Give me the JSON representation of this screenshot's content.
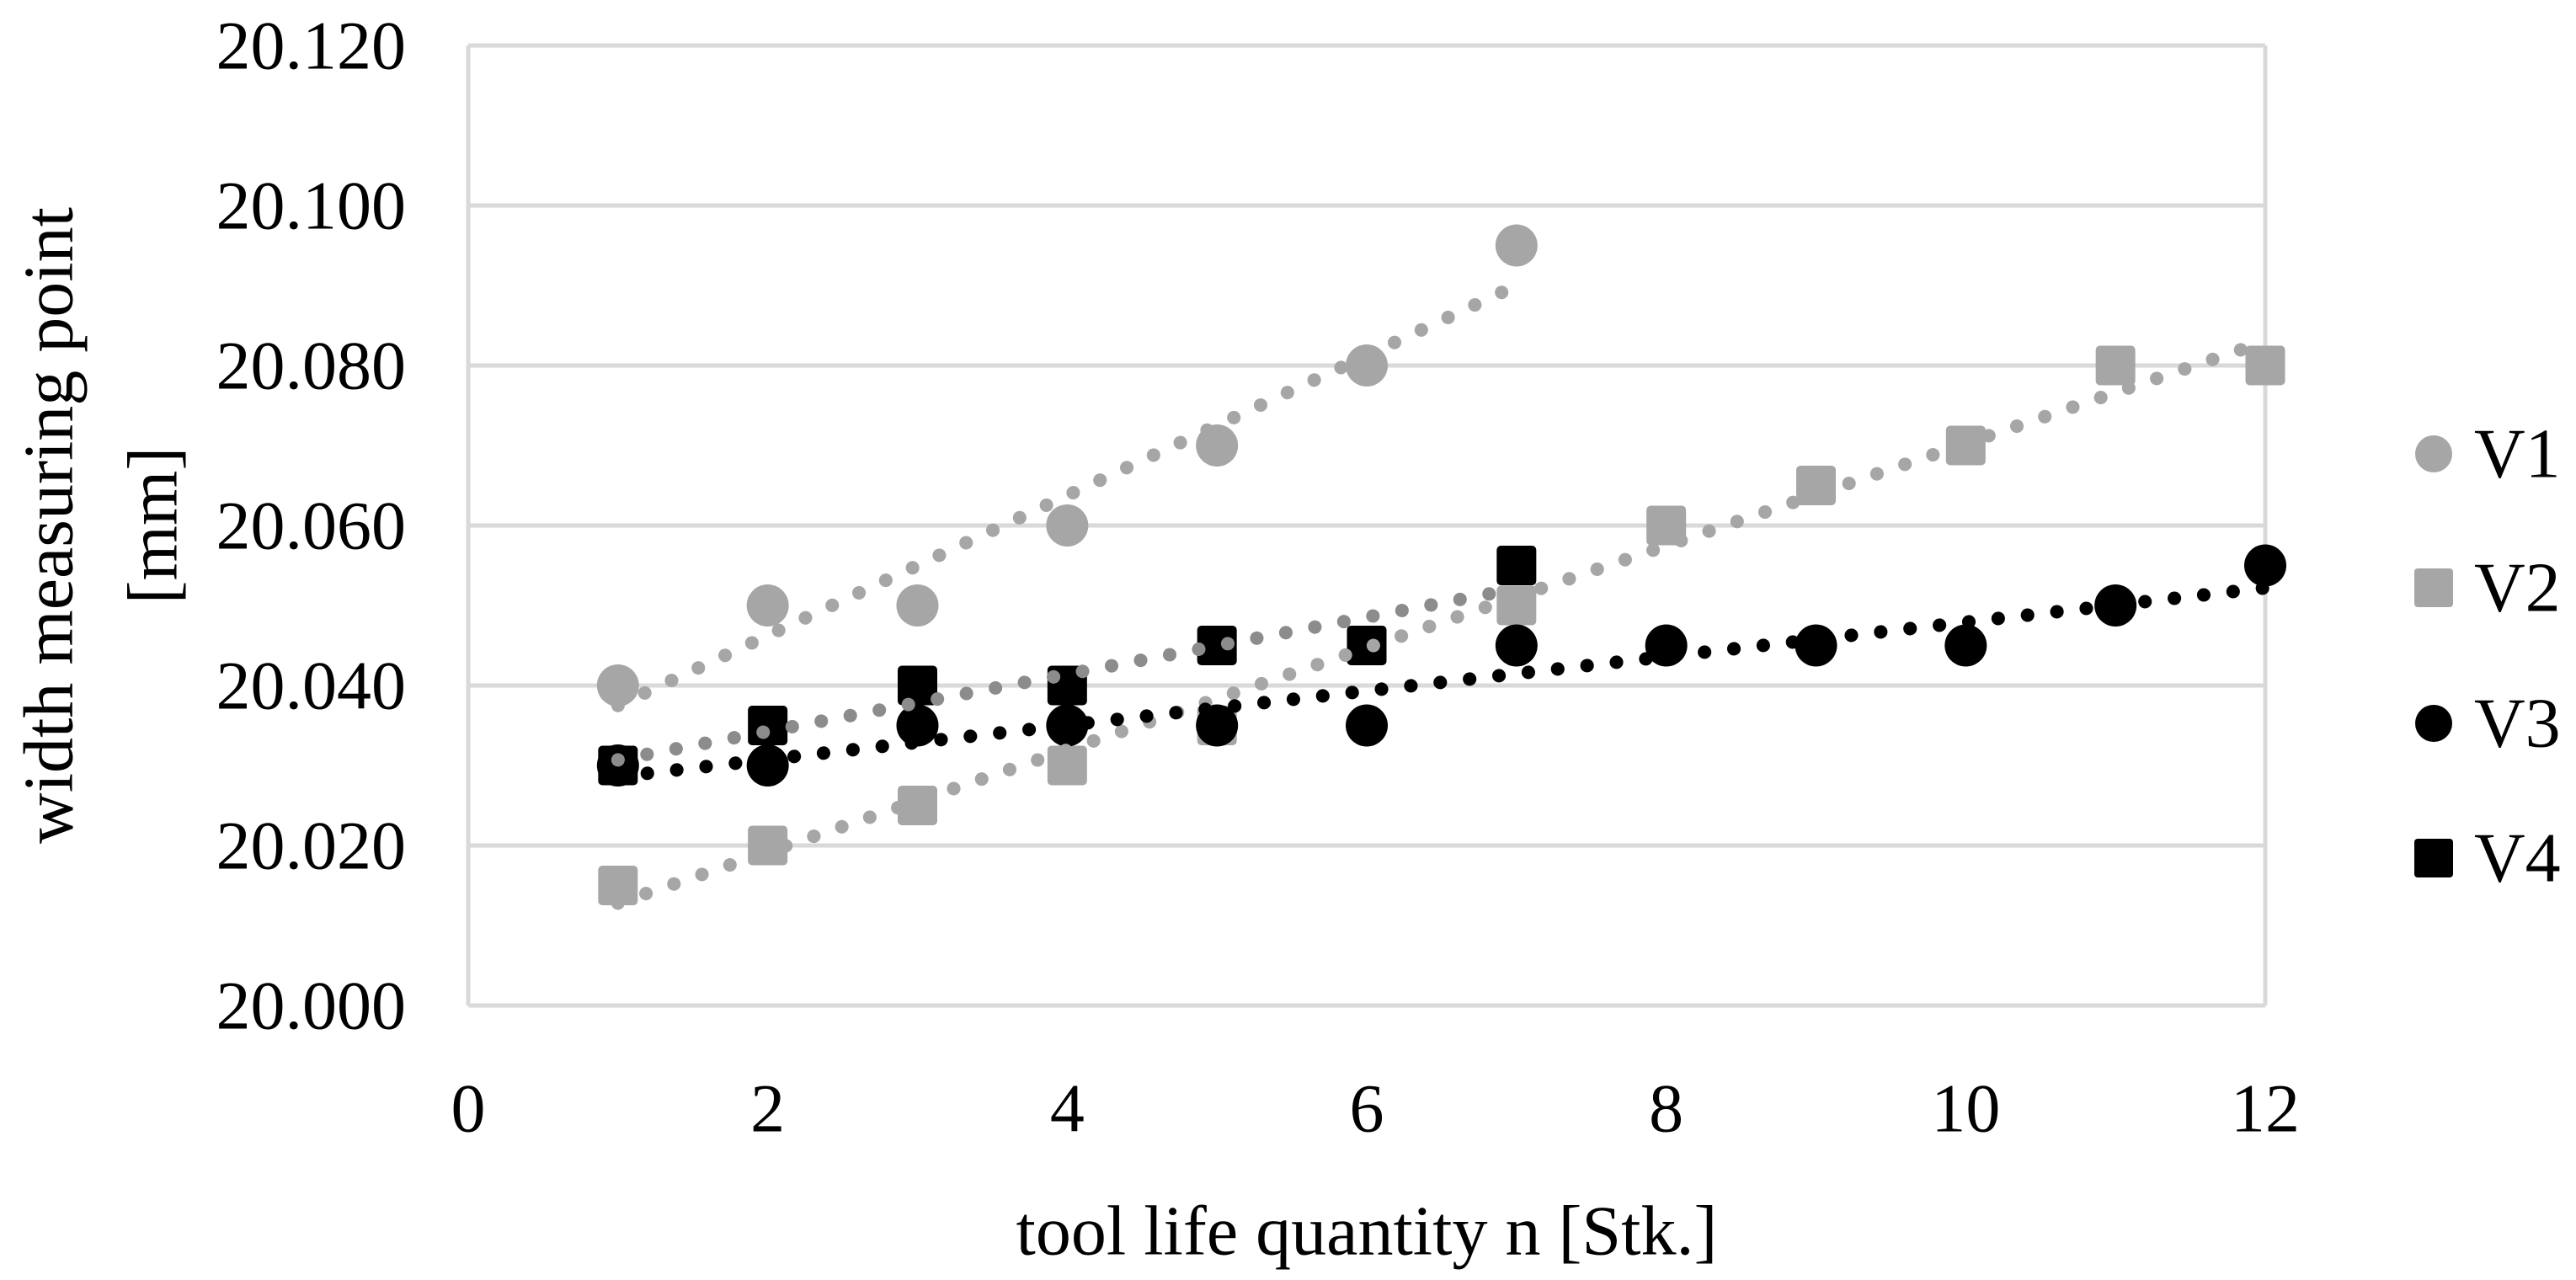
{
  "chart_data": {
    "type": "scatter",
    "title": "",
    "xlabel": "tool life quantity n [Stk.]",
    "ylabel_main": "width measuring point",
    "ylabel_unit": "[mm]",
    "xlim": [
      0,
      12
    ],
    "ylim": [
      20.0,
      20.12
    ],
    "x_ticks": [
      "0",
      "2",
      "4",
      "6",
      "8",
      "10",
      "12"
    ],
    "y_ticks": [
      "20.120",
      "20.100",
      "20.080",
      "20.060",
      "20.040",
      "20.020",
      "20.000"
    ],
    "grid": "horizontal-only",
    "legend_position": "right",
    "colors": {
      "gray_series": "#A6A6A6",
      "black_series": "#000000",
      "v4_trend_gray": "#8C8C8C",
      "gridline": "#D9D9D9",
      "text": "#000000",
      "background": "#FFFFFF"
    },
    "series": [
      {
        "name": "V1",
        "marker": "circle",
        "color": "#A6A6A6",
        "x": [
          1,
          2,
          3,
          4,
          5,
          6,
          7
        ],
        "y": [
          20.04,
          20.05,
          20.05,
          20.06,
          20.07,
          20.08,
          20.095
        ],
        "trend": {
          "style": "dotted",
          "color": "#A6A6A6",
          "x1": 1,
          "y1": 20.0375,
          "x2": 7,
          "y2": 20.09
        }
      },
      {
        "name": "V2",
        "marker": "square",
        "color": "#A6A6A6",
        "x": [
          1,
          2,
          3,
          4,
          5,
          6,
          7,
          8,
          9,
          10,
          11,
          12
        ],
        "y": [
          20.015,
          20.02,
          20.025,
          20.03,
          20.035,
          20.045,
          20.05,
          20.06,
          20.065,
          20.07,
          20.08,
          20.08
        ],
        "trend": {
          "style": "dotted",
          "color": "#A6A6A6",
          "x1": 1,
          "y1": 20.0128,
          "x2": 12,
          "y2": 20.083
        }
      },
      {
        "name": "V3",
        "marker": "circle",
        "color": "#000000",
        "x": [
          1,
          2,
          3,
          4,
          5,
          6,
          7,
          8,
          9,
          10,
          11,
          12
        ],
        "y": [
          20.03,
          20.03,
          20.035,
          20.035,
          20.035,
          20.035,
          20.045,
          20.045,
          20.045,
          20.045,
          20.05,
          20.055
        ],
        "trend": {
          "style": "dotted",
          "color": "#000000",
          "x1": 1,
          "y1": 20.0286,
          "x2": 12,
          "y2": 20.0522
        }
      },
      {
        "name": "V4",
        "marker": "square",
        "color": "#000000",
        "x": [
          1,
          2,
          3,
          4,
          5,
          6,
          7
        ],
        "y": [
          20.03,
          20.035,
          20.04,
          20.04,
          20.045,
          20.045,
          20.055
        ],
        "trend": {
          "style": "dotted",
          "color": "#8C8C8C",
          "x1": 1,
          "y1": 20.0307,
          "x2": 7,
          "y2": 20.0521
        }
      }
    ]
  }
}
